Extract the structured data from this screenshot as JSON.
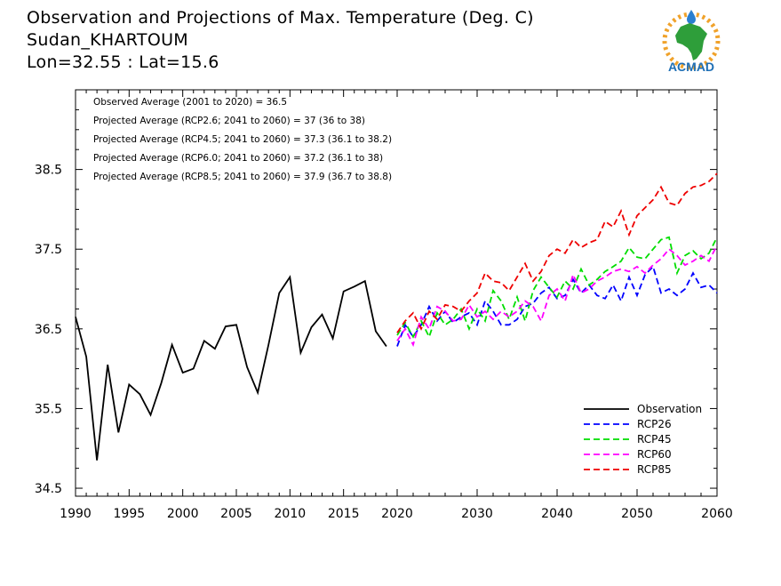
{
  "header": {
    "title": "Observation and Projections of Max. Temperature (Deg. C)",
    "station": "Sudan_KHARTOUM",
    "coords": "Lon=32.55 : Lat=15.6"
  },
  "logo": {
    "text": "ACMAD",
    "colors": {
      "africa": "#2e9e3a",
      "sun": "#f0a22a",
      "drop": "#2a7fd0",
      "text": "#1f6fb5"
    }
  },
  "chart_data": {
    "type": "line",
    "title": "Observation and Projections of Max. Temperature (Deg. C)",
    "xlim": [
      1990,
      2060
    ],
    "ylim": [
      34.4,
      39.5
    ],
    "x_ticks": [
      1990,
      1995,
      2000,
      2005,
      2010,
      2015,
      2020,
      2030,
      2040,
      2050,
      2060
    ],
    "y_ticks": [
      34.5,
      35.5,
      36.5,
      37.5,
      38.5
    ],
    "x_scale_break": 2020,
    "annotations": [
      "Observed Average (2001 to 2020) = 36.5",
      "Projected Average (RCP2.6; 2041 to 2060) = 37 (36 to 38)",
      "Projected Average (RCP4.5; 2041 to 2060) = 37.3 (36.1 to 38.2)",
      "Projected Average (RCP6.0; 2041 to 2060) = 37.2 (36.1 to 38)",
      "Projected Average (RCP8.5; 2041 to 2060) = 37.9 (36.7 to 38.8)"
    ],
    "legend_position": "bottom-right",
    "series": [
      {
        "name": "Observation",
        "color": "#000000",
        "dash": "solid",
        "x": [
          1990,
          1991,
          1992,
          1993,
          1994,
          1995,
          1996,
          1997,
          1998,
          1999,
          2000,
          2001,
          2002,
          2003,
          2004,
          2005,
          2006,
          2007,
          2008,
          2009,
          2010,
          2011,
          2012,
          2013,
          2014,
          2015,
          2016,
          2017,
          2018,
          2019
        ],
        "y": [
          36.65,
          36.15,
          34.85,
          36.05,
          35.2,
          35.8,
          35.68,
          35.42,
          35.82,
          36.3,
          35.95,
          36.0,
          36.35,
          36.25,
          36.53,
          36.55,
          36.02,
          35.7,
          36.3,
          36.95,
          37.15,
          36.2,
          36.52,
          36.68,
          36.38,
          36.97,
          37.03,
          37.1,
          36.47,
          36.28
        ]
      },
      {
        "name": "RCP26",
        "color": "#0000ff",
        "dash": "dashed",
        "x": [
          2020,
          2021,
          2022,
          2023,
          2024,
          2025,
          2026,
          2027,
          2028,
          2029,
          2030,
          2031,
          2032,
          2033,
          2034,
          2035,
          2036,
          2037,
          2038,
          2039,
          2040,
          2041,
          2042,
          2043,
          2044,
          2045,
          2046,
          2047,
          2048,
          2049,
          2050,
          2051,
          2052,
          2053,
          2054,
          2055,
          2056,
          2057,
          2058,
          2059,
          2060
        ],
        "y": [
          36.28,
          36.55,
          36.4,
          36.55,
          36.78,
          36.6,
          36.72,
          36.58,
          36.65,
          36.7,
          36.55,
          36.85,
          36.72,
          36.55,
          36.55,
          36.62,
          36.78,
          36.82,
          36.95,
          37.02,
          36.88,
          36.92,
          37.12,
          36.95,
          37.05,
          36.92,
          36.88,
          37.05,
          36.85,
          37.15,
          36.92,
          37.18,
          37.28,
          36.95,
          37.0,
          36.92,
          37.0,
          37.2,
          37.02,
          37.05,
          36.95
        ]
      },
      {
        "name": "RCP45",
        "color": "#00dd00",
        "dash": "dashed",
        "x": [
          2020,
          2021,
          2022,
          2023,
          2024,
          2025,
          2026,
          2027,
          2028,
          2029,
          2030,
          2031,
          2032,
          2033,
          2034,
          2035,
          2036,
          2037,
          2038,
          2039,
          2040,
          2041,
          2042,
          2043,
          2044,
          2045,
          2046,
          2047,
          2048,
          2049,
          2050,
          2051,
          2052,
          2053,
          2054,
          2055,
          2056,
          2057,
          2058,
          2059,
          2060
        ],
        "y": [
          36.42,
          36.58,
          36.4,
          36.6,
          36.4,
          36.7,
          36.55,
          36.62,
          36.75,
          36.5,
          36.75,
          36.6,
          36.98,
          36.85,
          36.62,
          36.9,
          36.6,
          36.98,
          37.15,
          37.02,
          36.9,
          37.1,
          37.0,
          37.25,
          37.05,
          37.12,
          37.22,
          37.28,
          37.35,
          37.52,
          37.4,
          37.38,
          37.5,
          37.62,
          37.65,
          37.2,
          37.42,
          37.48,
          37.38,
          37.45,
          37.65
        ]
      },
      {
        "name": "RCP60",
        "color": "#ff00ff",
        "dash": "dashed",
        "x": [
          2020,
          2021,
          2022,
          2023,
          2024,
          2025,
          2026,
          2027,
          2028,
          2029,
          2030,
          2031,
          2032,
          2033,
          2034,
          2035,
          2036,
          2037,
          2038,
          2039,
          2040,
          2041,
          2042,
          2043,
          2044,
          2045,
          2046,
          2047,
          2048,
          2049,
          2050,
          2051,
          2052,
          2053,
          2054,
          2055,
          2056,
          2057,
          2058,
          2059,
          2060
        ],
        "y": [
          36.35,
          36.5,
          36.3,
          36.65,
          36.5,
          36.78,
          36.72,
          36.6,
          36.62,
          36.8,
          36.65,
          36.72,
          36.62,
          36.72,
          36.65,
          36.72,
          36.85,
          36.78,
          36.6,
          36.92,
          37.0,
          36.85,
          37.18,
          36.95,
          37.0,
          37.1,
          37.15,
          37.22,
          37.25,
          37.22,
          37.28,
          37.2,
          37.3,
          37.38,
          37.5,
          37.42,
          37.3,
          37.35,
          37.42,
          37.35,
          37.55
        ]
      },
      {
        "name": "RCP85",
        "color": "#ee0000",
        "dash": "dashed",
        "x": [
          2020,
          2021,
          2022,
          2023,
          2024,
          2025,
          2026,
          2027,
          2028,
          2029,
          2030,
          2031,
          2032,
          2033,
          2034,
          2035,
          2036,
          2037,
          2038,
          2039,
          2040,
          2041,
          2042,
          2043,
          2044,
          2045,
          2046,
          2047,
          2048,
          2049,
          2050,
          2051,
          2052,
          2053,
          2054,
          2055,
          2056,
          2057,
          2058,
          2059,
          2060
        ],
        "y": [
          36.45,
          36.6,
          36.7,
          36.5,
          36.72,
          36.62,
          36.8,
          36.78,
          36.72,
          36.85,
          36.95,
          37.2,
          37.1,
          37.08,
          36.98,
          37.15,
          37.32,
          37.1,
          37.22,
          37.42,
          37.5,
          37.45,
          37.62,
          37.52,
          37.58,
          37.62,
          37.85,
          37.78,
          37.98,
          37.68,
          37.92,
          38.02,
          38.12,
          38.28,
          38.08,
          38.05,
          38.2,
          38.28,
          38.3,
          38.35,
          38.45
        ]
      }
    ]
  }
}
